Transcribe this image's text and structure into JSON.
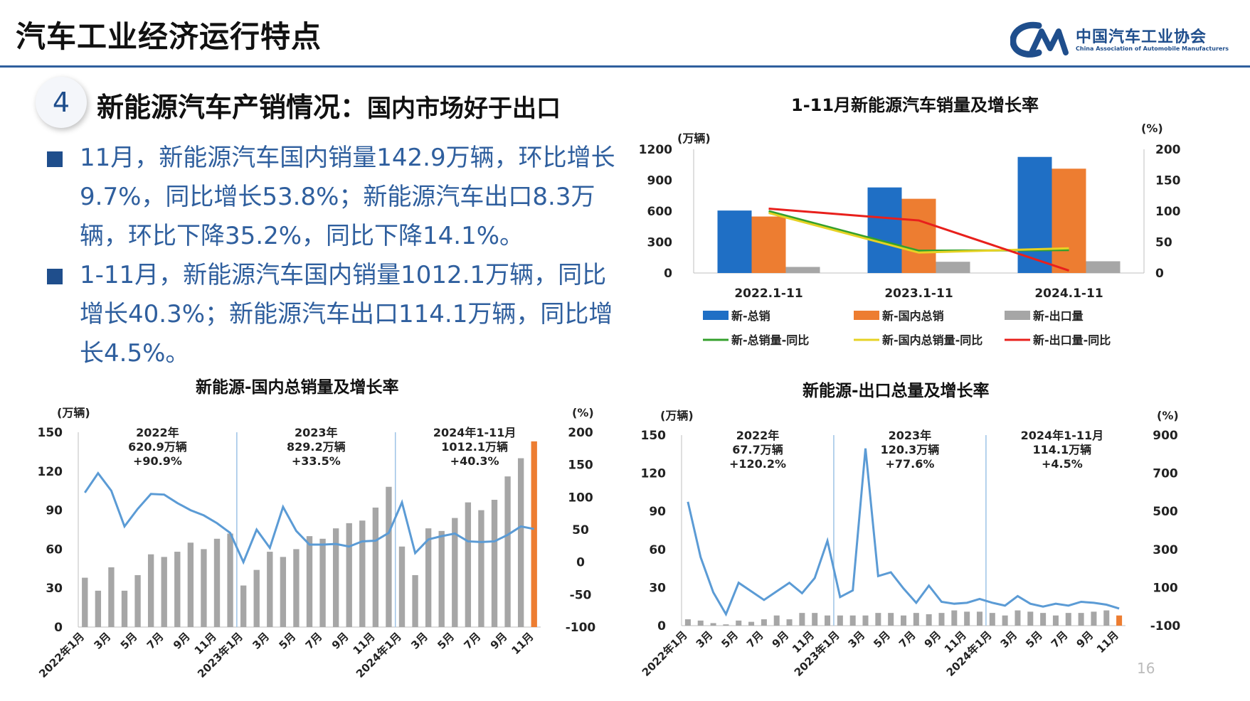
{
  "header": {
    "title": "汽车工业经济运行特点",
    "logo_cn": "中国汽车工业协会",
    "logo_en": "China Association of Automobile Manufacturers",
    "accent_color": "#2f5f9e"
  },
  "section": {
    "number": "4",
    "title": "新能源汽车产销情况：",
    "subtitle": "国内市场好于出口"
  },
  "bullets": [
    "11月，新能源汽车国内销量142.9万辆，环比增长9.7%，同比增长53.8%；新能源汽车出口8.3万辆，环比下降35.2%，同比下降14.1%。",
    "1-11月，新能源汽车国内销量1012.1万辆，同比增长40.3%；新能源汽车出口114.1万辆，同比增长4.5%。"
  ],
  "page_number": "16",
  "chart_data": [
    {
      "id": "summary",
      "type": "bar",
      "title": "1-11月新能源汽车销量及增长率",
      "yunit_left": "(万辆)",
      "yunit_right": "(%)",
      "ylim": [
        0,
        1200
      ],
      "yticks": [
        "0",
        "300",
        "600",
        "900",
        "1200"
      ],
      "y2lim": [
        0,
        200
      ],
      "y2ticks": [
        "0",
        "50",
        "100",
        "150",
        "200"
      ],
      "categories": [
        "2022.1-11",
        "2023.1-11",
        "2024.1-11"
      ],
      "series": [
        {
          "name": "新-总销",
          "kind": "bar",
          "axis": "left",
          "color": "#1f6fc5",
          "values": [
            606,
            830,
            1126
          ]
        },
        {
          "name": "新-国内总销",
          "kind": "bar",
          "axis": "left",
          "color": "#ed7d31",
          "values": [
            548,
            720,
            1012
          ]
        },
        {
          "name": "新-出口量",
          "kind": "bar",
          "axis": "left",
          "color": "#a6a6a6",
          "values": [
            59,
            109,
            114
          ]
        },
        {
          "name": "新-总销量-同比",
          "kind": "line",
          "axis": "right",
          "color": "#34a02c",
          "values": [
            100,
            36,
            37
          ]
        },
        {
          "name": "新-国内总销量-同比",
          "kind": "line",
          "axis": "right",
          "color": "#e6d224",
          "values": [
            97,
            33,
            40
          ]
        },
        {
          "name": "新-出口量-同比",
          "kind": "line",
          "axis": "right",
          "color": "#e8201c",
          "values": [
            104,
            85,
            4
          ]
        }
      ]
    },
    {
      "id": "domestic",
      "type": "bar",
      "title": "新能源-国内总销量及增长率",
      "yunit_left": "(万辆)",
      "yunit_right": "(%)",
      "ylim": [
        0,
        150
      ],
      "yticks": [
        "0",
        "30",
        "60",
        "90",
        "120",
        "150"
      ],
      "y2lim": [
        -100,
        200
      ],
      "y2ticks": [
        "-100",
        "-50",
        "0",
        "50",
        "100",
        "150",
        "200"
      ],
      "xticks": [
        {
          "index": 0,
          "label": "2022年1月"
        },
        {
          "index": 2,
          "label": "3月"
        },
        {
          "index": 4,
          "label": "5月"
        },
        {
          "index": 6,
          "label": "7月"
        },
        {
          "index": 8,
          "label": "9月"
        },
        {
          "index": 10,
          "label": "11月"
        },
        {
          "index": 12,
          "label": "2023年1月"
        },
        {
          "index": 14,
          "label": "3月"
        },
        {
          "index": 16,
          "label": "5月"
        },
        {
          "index": 18,
          "label": "7月"
        },
        {
          "index": 20,
          "label": "9月"
        },
        {
          "index": 22,
          "label": "11月"
        },
        {
          "index": 24,
          "label": "2024年1月"
        },
        {
          "index": 26,
          "label": "3月"
        },
        {
          "index": 28,
          "label": "5月"
        },
        {
          "index": 30,
          "label": "7月"
        },
        {
          "index": 32,
          "label": "9月"
        },
        {
          "index": 34,
          "label": "11月"
        }
      ],
      "bar_color": "#a6a6a6",
      "highlight_color": "#ed7d31",
      "line_color": "#5b9bd5",
      "values": [
        38,
        28,
        46,
        28,
        40,
        56,
        54,
        58,
        65,
        60,
        68,
        72,
        32,
        44,
        58,
        54,
        60,
        70,
        68,
        76,
        80,
        82,
        92,
        108,
        62,
        40,
        76,
        74,
        84,
        96,
        90,
        98,
        116,
        130,
        143
      ],
      "growth": [
        107,
        137,
        110,
        55,
        82,
        105,
        104,
        91,
        80,
        72,
        60,
        45,
        0,
        50,
        22,
        85,
        48,
        27,
        27,
        28,
        24,
        32,
        33,
        45,
        92,
        14,
        35,
        40,
        44,
        32,
        31,
        32,
        42,
        55,
        51
      ],
      "annotations": [
        {
          "center_index": 5.5,
          "lines": [
            "2022年",
            "620.9万辆",
            "+90.9%"
          ]
        },
        {
          "center_index": 17.5,
          "lines": [
            "2023年",
            "829.2万辆",
            "+33.5%"
          ]
        },
        {
          "center_index": 29.5,
          "lines": [
            "2024年1-11月",
            "1012.1万辆",
            "+40.3%"
          ]
        }
      ],
      "dividers": [
        11.5,
        23.5
      ]
    },
    {
      "id": "export",
      "type": "bar",
      "title": "新能源-出口总量及增长率",
      "yunit_left": "(万辆)",
      "yunit_right": "(%)",
      "ylim": [
        0,
        150
      ],
      "yticks": [
        "0",
        "30",
        "60",
        "90",
        "120",
        "150"
      ],
      "y2lim": [
        -100,
        900
      ],
      "y2ticks": [
        "-100",
        "100",
        "300",
        "500",
        "700",
        "900"
      ],
      "xticks": [
        {
          "index": 0,
          "label": "2022年1月"
        },
        {
          "index": 2,
          "label": "3月"
        },
        {
          "index": 4,
          "label": "5月"
        },
        {
          "index": 6,
          "label": "7月"
        },
        {
          "index": 8,
          "label": "9月"
        },
        {
          "index": 10,
          "label": "11月"
        },
        {
          "index": 12,
          "label": "2023年1月"
        },
        {
          "index": 14,
          "label": "3月"
        },
        {
          "index": 16,
          "label": "5月"
        },
        {
          "index": 18,
          "label": "7月"
        },
        {
          "index": 20,
          "label": "9月"
        },
        {
          "index": 22,
          "label": "11月"
        },
        {
          "index": 24,
          "label": "2024年1月"
        },
        {
          "index": 26,
          "label": "3月"
        },
        {
          "index": 28,
          "label": "5月"
        },
        {
          "index": 30,
          "label": "7月"
        },
        {
          "index": 32,
          "label": "9月"
        },
        {
          "index": 34,
          "label": "11月"
        }
      ],
      "bar_color": "#a6a6a6",
      "highlight_color": "#ed7d31",
      "line_color": "#5b9bd5",
      "values": [
        5,
        4,
        2,
        1,
        4,
        3,
        5,
        8,
        5,
        10,
        10,
        8,
        8,
        8,
        8,
        10,
        10,
        8,
        10,
        9,
        10,
        12,
        11,
        11,
        10,
        8,
        12,
        11,
        10,
        8,
        10,
        10,
        11,
        12,
        8
      ],
      "growth": [
        550,
        260,
        75,
        -40,
        125,
        80,
        35,
        80,
        125,
        70,
        150,
        345,
        50,
        85,
        830,
        160,
        180,
        95,
        20,
        110,
        25,
        15,
        20,
        40,
        20,
        5,
        55,
        15,
        0,
        15,
        5,
        25,
        20,
        10,
        -10
      ],
      "annotations": [
        {
          "center_index": 5.5,
          "lines": [
            "2022年",
            "67.7万辆",
            "+120.2%"
          ]
        },
        {
          "center_index": 17.5,
          "lines": [
            "2023年",
            "120.3万辆",
            "+77.6%"
          ]
        },
        {
          "center_index": 29.5,
          "lines": [
            "2024年1-11月",
            "114.1万辆",
            "+4.5%"
          ]
        }
      ],
      "dividers": [
        11.5,
        23.5
      ]
    }
  ]
}
